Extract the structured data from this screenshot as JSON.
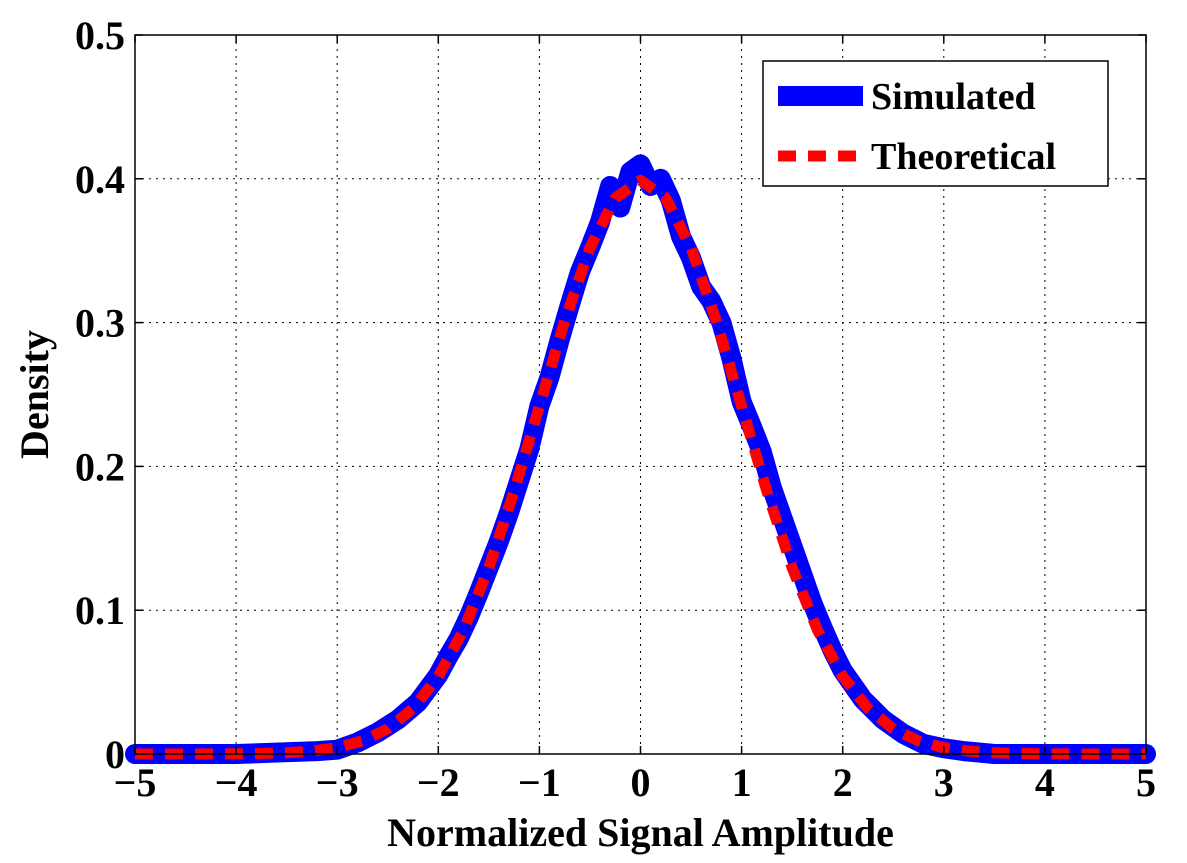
{
  "chart_data": {
    "type": "line",
    "title": "",
    "xlabel": "Normalized Signal Amplitude",
    "ylabel": "Density",
    "xlim": [
      -5,
      5
    ],
    "ylim": [
      0,
      0.5
    ],
    "grid": true,
    "legend_position": "top-right",
    "x_ticks": [
      -5,
      -4,
      -3,
      -2,
      -1,
      0,
      1,
      2,
      3,
      4,
      5
    ],
    "x_tick_labels": [
      "−5",
      "−4",
      "−3",
      "−2",
      "−1",
      "0",
      "1",
      "2",
      "3",
      "4",
      "5"
    ],
    "y_ticks": [
      0,
      0.1,
      0.2,
      0.3,
      0.4,
      0.5
    ],
    "y_tick_labels": [
      "0",
      "0.1",
      "0.2",
      "0.3",
      "0.4",
      "0.5"
    ],
    "series": [
      {
        "name": "Simulated",
        "color": "#0000ff",
        "style": "solid",
        "x": [
          -5,
          -4.5,
          -4,
          -3.6,
          -3.2,
          -3,
          -2.8,
          -2.6,
          -2.4,
          -2.2,
          -2,
          -1.9,
          -1.8,
          -1.7,
          -1.6,
          -1.5,
          -1.4,
          -1.3,
          -1.2,
          -1.1,
          -1,
          -0.9,
          -0.8,
          -0.7,
          -0.6,
          -0.5,
          -0.4,
          -0.3,
          -0.2,
          -0.1,
          0,
          0.1,
          0.2,
          0.3,
          0.4,
          0.5,
          0.6,
          0.7,
          0.8,
          0.9,
          1,
          1.1,
          1.2,
          1.3,
          1.4,
          1.5,
          1.6,
          1.7,
          1.8,
          1.9,
          2,
          2.2,
          2.4,
          2.6,
          2.8,
          3,
          3.2,
          3.5,
          4,
          4.5,
          5
        ],
        "y": [
          0,
          0,
          0,
          0.001,
          0.002,
          0.003,
          0.008,
          0.015,
          0.024,
          0.036,
          0.055,
          0.068,
          0.08,
          0.095,
          0.112,
          0.13,
          0.148,
          0.168,
          0.19,
          0.212,
          0.242,
          0.262,
          0.288,
          0.312,
          0.335,
          0.352,
          0.37,
          0.395,
          0.38,
          0.405,
          0.41,
          0.395,
          0.4,
          0.385,
          0.36,
          0.345,
          0.325,
          0.315,
          0.3,
          0.275,
          0.245,
          0.228,
          0.21,
          0.185,
          0.165,
          0.145,
          0.125,
          0.105,
          0.088,
          0.072,
          0.058,
          0.038,
          0.024,
          0.014,
          0.007,
          0.004,
          0.002,
          0,
          0,
          0,
          0
        ]
      },
      {
        "name": "Theoretical",
        "color": "#ff0000",
        "style": "dashed",
        "x": [
          -5,
          -4.75,
          -4.5,
          -4.25,
          -4,
          -3.75,
          -3.5,
          -3.25,
          -3,
          -2.75,
          -2.5,
          -2.25,
          -2,
          -1.75,
          -1.5,
          -1.25,
          -1,
          -0.75,
          -0.5,
          -0.25,
          0,
          0.25,
          0.5,
          0.75,
          1,
          1.25,
          1.5,
          1.75,
          2,
          2.25,
          2.5,
          2.75,
          3,
          3.25,
          3.5,
          3.75,
          4,
          4.25,
          4.5,
          4.75,
          5
        ],
        "y": [
          1.5e-06,
          5e-06,
          1.6e-05,
          4.8e-05,
          0.000134,
          0.000353,
          0.00087,
          0.00203,
          0.00443,
          0.00909,
          0.01753,
          0.03174,
          0.05399,
          0.08628,
          0.12952,
          0.18265,
          0.24197,
          0.30114,
          0.35207,
          0.38667,
          0.39894,
          0.38667,
          0.35207,
          0.30114,
          0.24197,
          0.18265,
          0.12952,
          0.08628,
          0.05399,
          0.03174,
          0.01753,
          0.00909,
          0.00443,
          0.00203,
          0.00087,
          0.000353,
          0.000134,
          4.8e-05,
          1.6e-05,
          5e-06,
          1.5e-06
        ]
      }
    ]
  }
}
